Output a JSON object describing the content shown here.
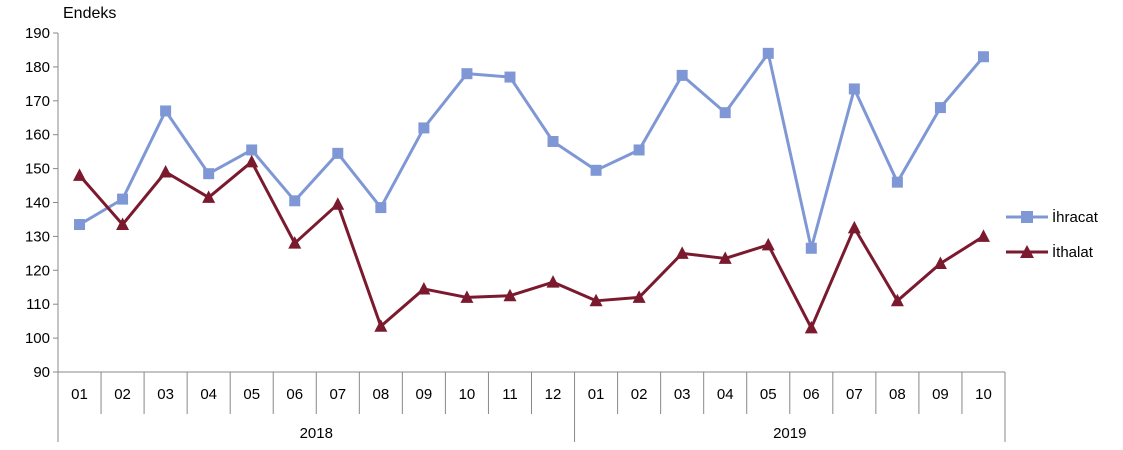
{
  "chart_data": {
    "type": "line",
    "ylabel": "Endeks",
    "ylim": [
      90,
      190
    ],
    "yticks": [
      "90",
      "100",
      "110",
      "120",
      "130",
      "140",
      "150",
      "160",
      "170",
      "180",
      "190"
    ],
    "categories": [
      "01",
      "02",
      "03",
      "04",
      "05",
      "06",
      "07",
      "08",
      "09",
      "10",
      "11",
      "12",
      "01",
      "02",
      "03",
      "04",
      "05",
      "06",
      "07",
      "08",
      "09",
      "10"
    ],
    "groups": [
      {
        "label": "2018",
        "count": 12
      },
      {
        "label": "2019",
        "count": 10
      }
    ],
    "legend_position": "right",
    "grid": false,
    "series": [
      {
        "name": "İhracat",
        "color": "#7f98d5",
        "marker": "square",
        "values": [
          133.5,
          141,
          167,
          148.5,
          155.5,
          140.5,
          154.5,
          138.5,
          162,
          178,
          177,
          158,
          149.5,
          155.5,
          177.5,
          166.5,
          184,
          126.5,
          173.5,
          146,
          168,
          183
        ]
      },
      {
        "name": "İthalat",
        "color": "#7b1a2e",
        "marker": "triangle",
        "values": [
          148,
          133.5,
          149,
          141.5,
          152,
          128,
          139.5,
          103.5,
          114.5,
          112,
          112.5,
          116.5,
          111,
          112,
          125,
          123.5,
          127.5,
          103,
          132.5,
          111,
          122,
          130
        ]
      }
    ]
  }
}
